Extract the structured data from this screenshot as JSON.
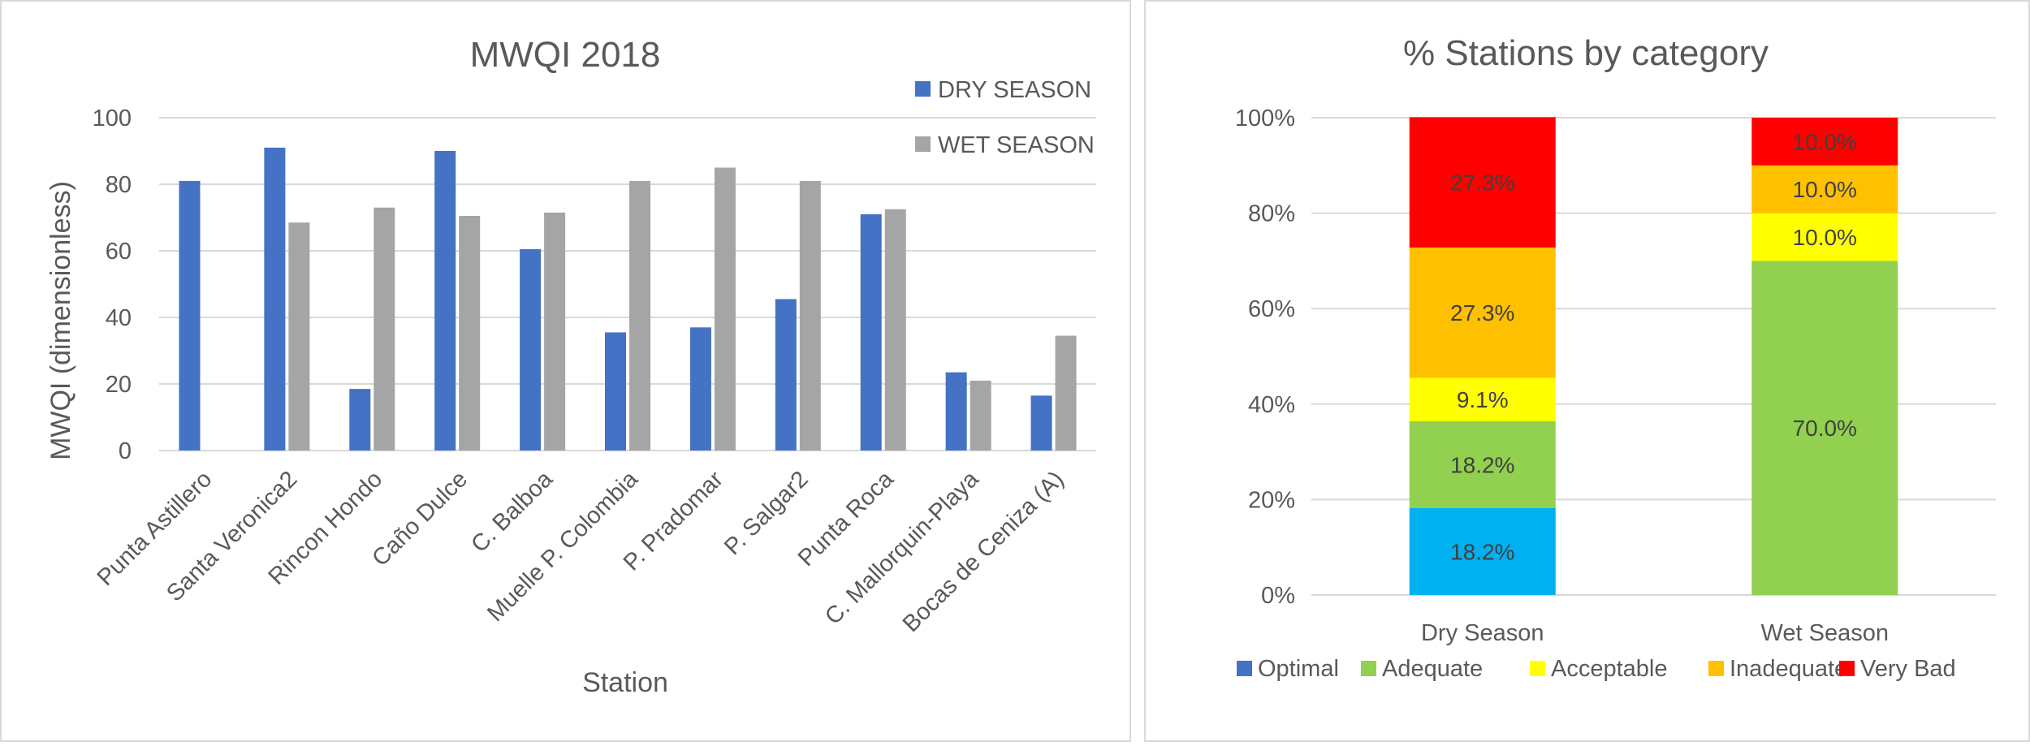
{
  "chart_data": [
    {
      "type": "bar",
      "title": "MWQI 2018",
      "xlabel": "Station",
      "ylabel": "MWQI (dimensionless)",
      "ylim": [
        0,
        100
      ],
      "yticks": [
        0,
        20,
        40,
        60,
        80,
        100
      ],
      "grid": true,
      "legend_position": "top-right",
      "categories": [
        "Punta Astillero",
        "Santa Veronica2",
        "Rincon Hondo",
        "Caño Dulce",
        "C. Balboa",
        "Muelle P. Colombia",
        "P. Pradomar",
        "P. Salgar2",
        "Punta Roca",
        "C. Mallorquin-Playa",
        "Bocas de Ceniza (A)"
      ],
      "series": [
        {
          "name": "DRY SEASON",
          "color": "#4472c4",
          "values": [
            81,
            91,
            18.5,
            90,
            60.5,
            35.5,
            37,
            45.5,
            71,
            23.5,
            16.5
          ]
        },
        {
          "name": "WET SEASON",
          "color": "#a5a5a5",
          "values": [
            null,
            68.5,
            73,
            70.5,
            71.5,
            81,
            85,
            81,
            72.5,
            21,
            34.5
          ]
        }
      ]
    },
    {
      "type": "bar",
      "stacked": true,
      "percent": true,
      "title": "% Stations by category",
      "xlabel": "",
      "ylabel": "",
      "ylim": [
        0,
        100
      ],
      "yticks": [
        "0%",
        "20%",
        "40%",
        "60%",
        "80%",
        "100%"
      ],
      "grid": true,
      "legend_position": "bottom",
      "categories": [
        "Dry Season",
        "Wet Season"
      ],
      "series": [
        {
          "name": "Optimal",
          "color": "#00b0f0",
          "legend_color": "#4472c4",
          "values": [
            18.2,
            0
          ],
          "labels": [
            "18.2%",
            ""
          ]
        },
        {
          "name": "Adequate",
          "color": "#92d050",
          "values": [
            18.2,
            70.0
          ],
          "labels": [
            "18.2%",
            "70.0%"
          ]
        },
        {
          "name": "Acceptable",
          "color": "#ffff00",
          "values": [
            9.1,
            10.0
          ],
          "labels": [
            "9.1%",
            "10.0%"
          ]
        },
        {
          "name": "Inadequate",
          "color": "#ffc000",
          "values": [
            27.3,
            10.0
          ],
          "labels": [
            "27.3%",
            "10.0%"
          ]
        },
        {
          "name": "Very Bad",
          "color": "#ff0000",
          "values": [
            27.3,
            10.0
          ],
          "labels": [
            "27.3%",
            "10.0%"
          ]
        }
      ]
    }
  ]
}
